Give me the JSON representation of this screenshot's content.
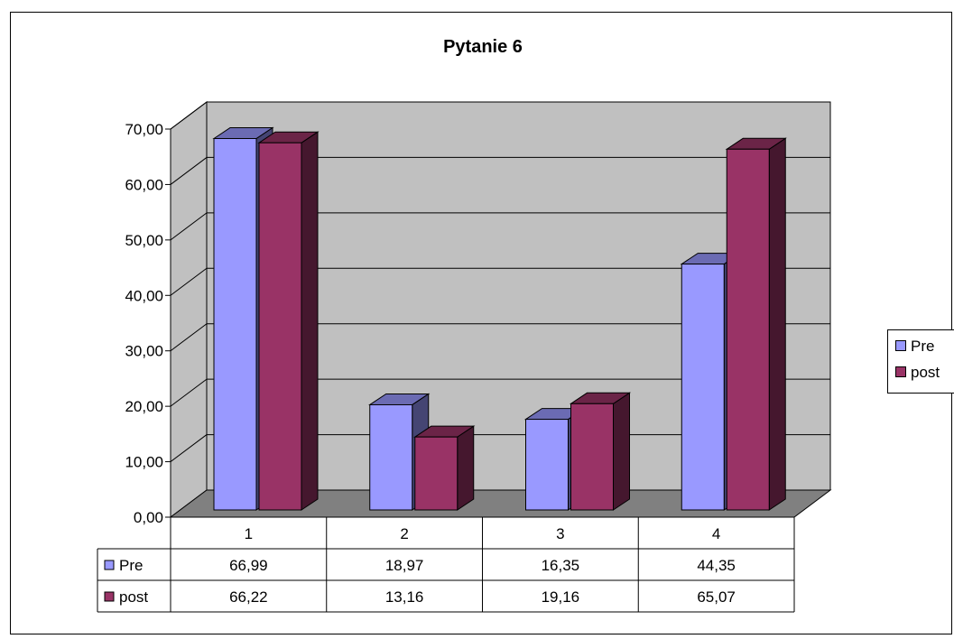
{
  "chart_data": {
    "type": "bar",
    "title": "Pytanie 6",
    "categories": [
      "1",
      "2",
      "3",
      "4"
    ],
    "series": [
      {
        "name": "Pre",
        "values": [
          66.99,
          18.97,
          16.35,
          44.35
        ],
        "labels": [
          "66,99",
          "18,97",
          "16,35",
          "44,35"
        ],
        "color": "#9999ff"
      },
      {
        "name": "post",
        "values": [
          66.22,
          13.16,
          19.16,
          65.07
        ],
        "labels": [
          "66,22",
          "13,16",
          "19,16",
          "65,07"
        ],
        "color": "#993366"
      }
    ],
    "ylim": [
      0,
      70
    ],
    "yticks": [
      "0,00",
      "10,00",
      "20,00",
      "30,00",
      "40,00",
      "50,00",
      "60,00",
      "70,00"
    ],
    "grid": true,
    "legend": "right",
    "data_table": true,
    "wall_color": "#c0c0c0",
    "floor_color": "#808080"
  }
}
